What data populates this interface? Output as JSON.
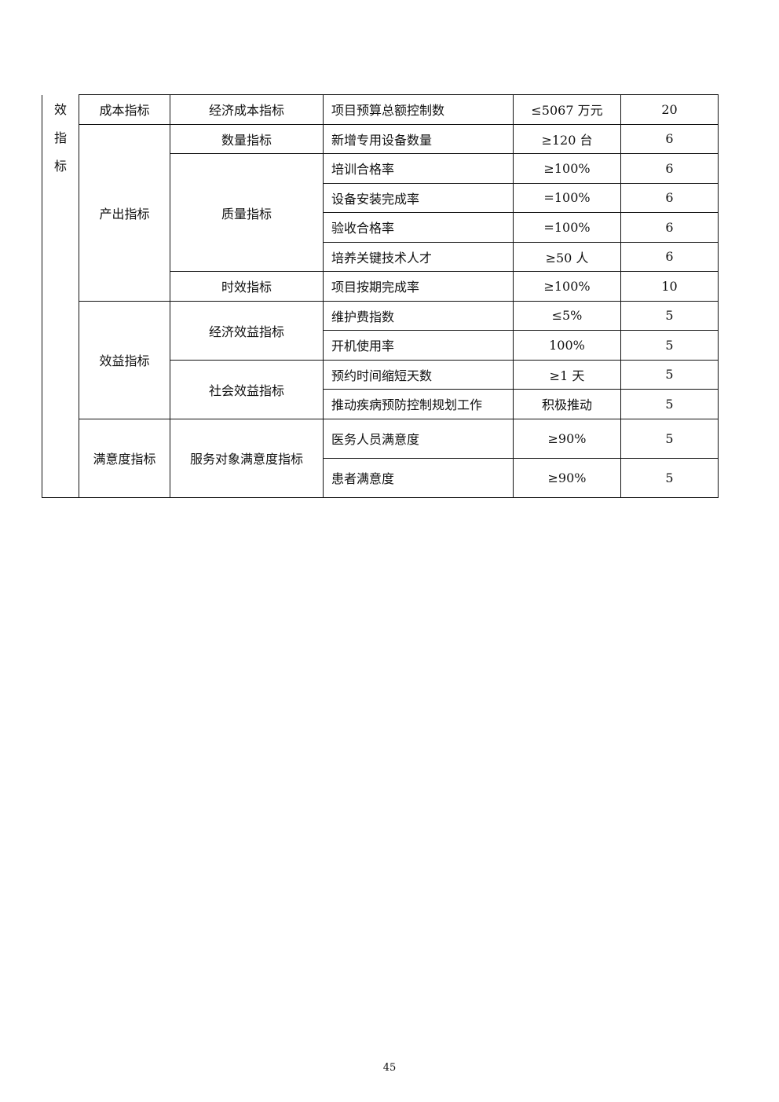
{
  "side_label": [
    "效",
    "指",
    "标"
  ],
  "groups": {
    "cost": "成本指标",
    "output": "产出指标",
    "benefit": "效益指标",
    "satisfaction": "满意度指标"
  },
  "subgroups": {
    "econ_cost": "经济成本指标",
    "quantity": "数量指标",
    "quality": "质量指标",
    "timeliness": "时效指标",
    "econ_benefit": "经济效益指标",
    "social_benefit": "社会效益指标",
    "service_satisfaction": "服务对象满意度指标"
  },
  "rows": [
    {
      "indicator": "项目预算总额控制数",
      "target": "≤5067 万元",
      "score": "20"
    },
    {
      "indicator": "新增专用设备数量",
      "target": "≥120 台",
      "score": "6"
    },
    {
      "indicator": "培训合格率",
      "target": "≥100%",
      "score": "6"
    },
    {
      "indicator": "设备安装完成率",
      "target": "=100%",
      "score": "6"
    },
    {
      "indicator": "验收合格率",
      "target": "=100%",
      "score": "6"
    },
    {
      "indicator": "培养关键技术人才",
      "target": "≥50 人",
      "score": "6"
    },
    {
      "indicator": "项目按期完成率",
      "target": "≥100%",
      "score": "10"
    },
    {
      "indicator": "维护费指数",
      "target": "≤5%",
      "score": "5"
    },
    {
      "indicator": "开机使用率",
      "target": "100%",
      "score": "5"
    },
    {
      "indicator": "预约时间缩短天数",
      "target": "≥1 天",
      "score": "5"
    },
    {
      "indicator": "推动疾病预防控制规划工作",
      "target": "积极推动",
      "score": "5"
    },
    {
      "indicator": "医务人员满意度",
      "target": "≥90%",
      "score": "5"
    },
    {
      "indicator": "患者满意度",
      "target": "≥90%",
      "score": "5"
    }
  ],
  "page_number": "45"
}
